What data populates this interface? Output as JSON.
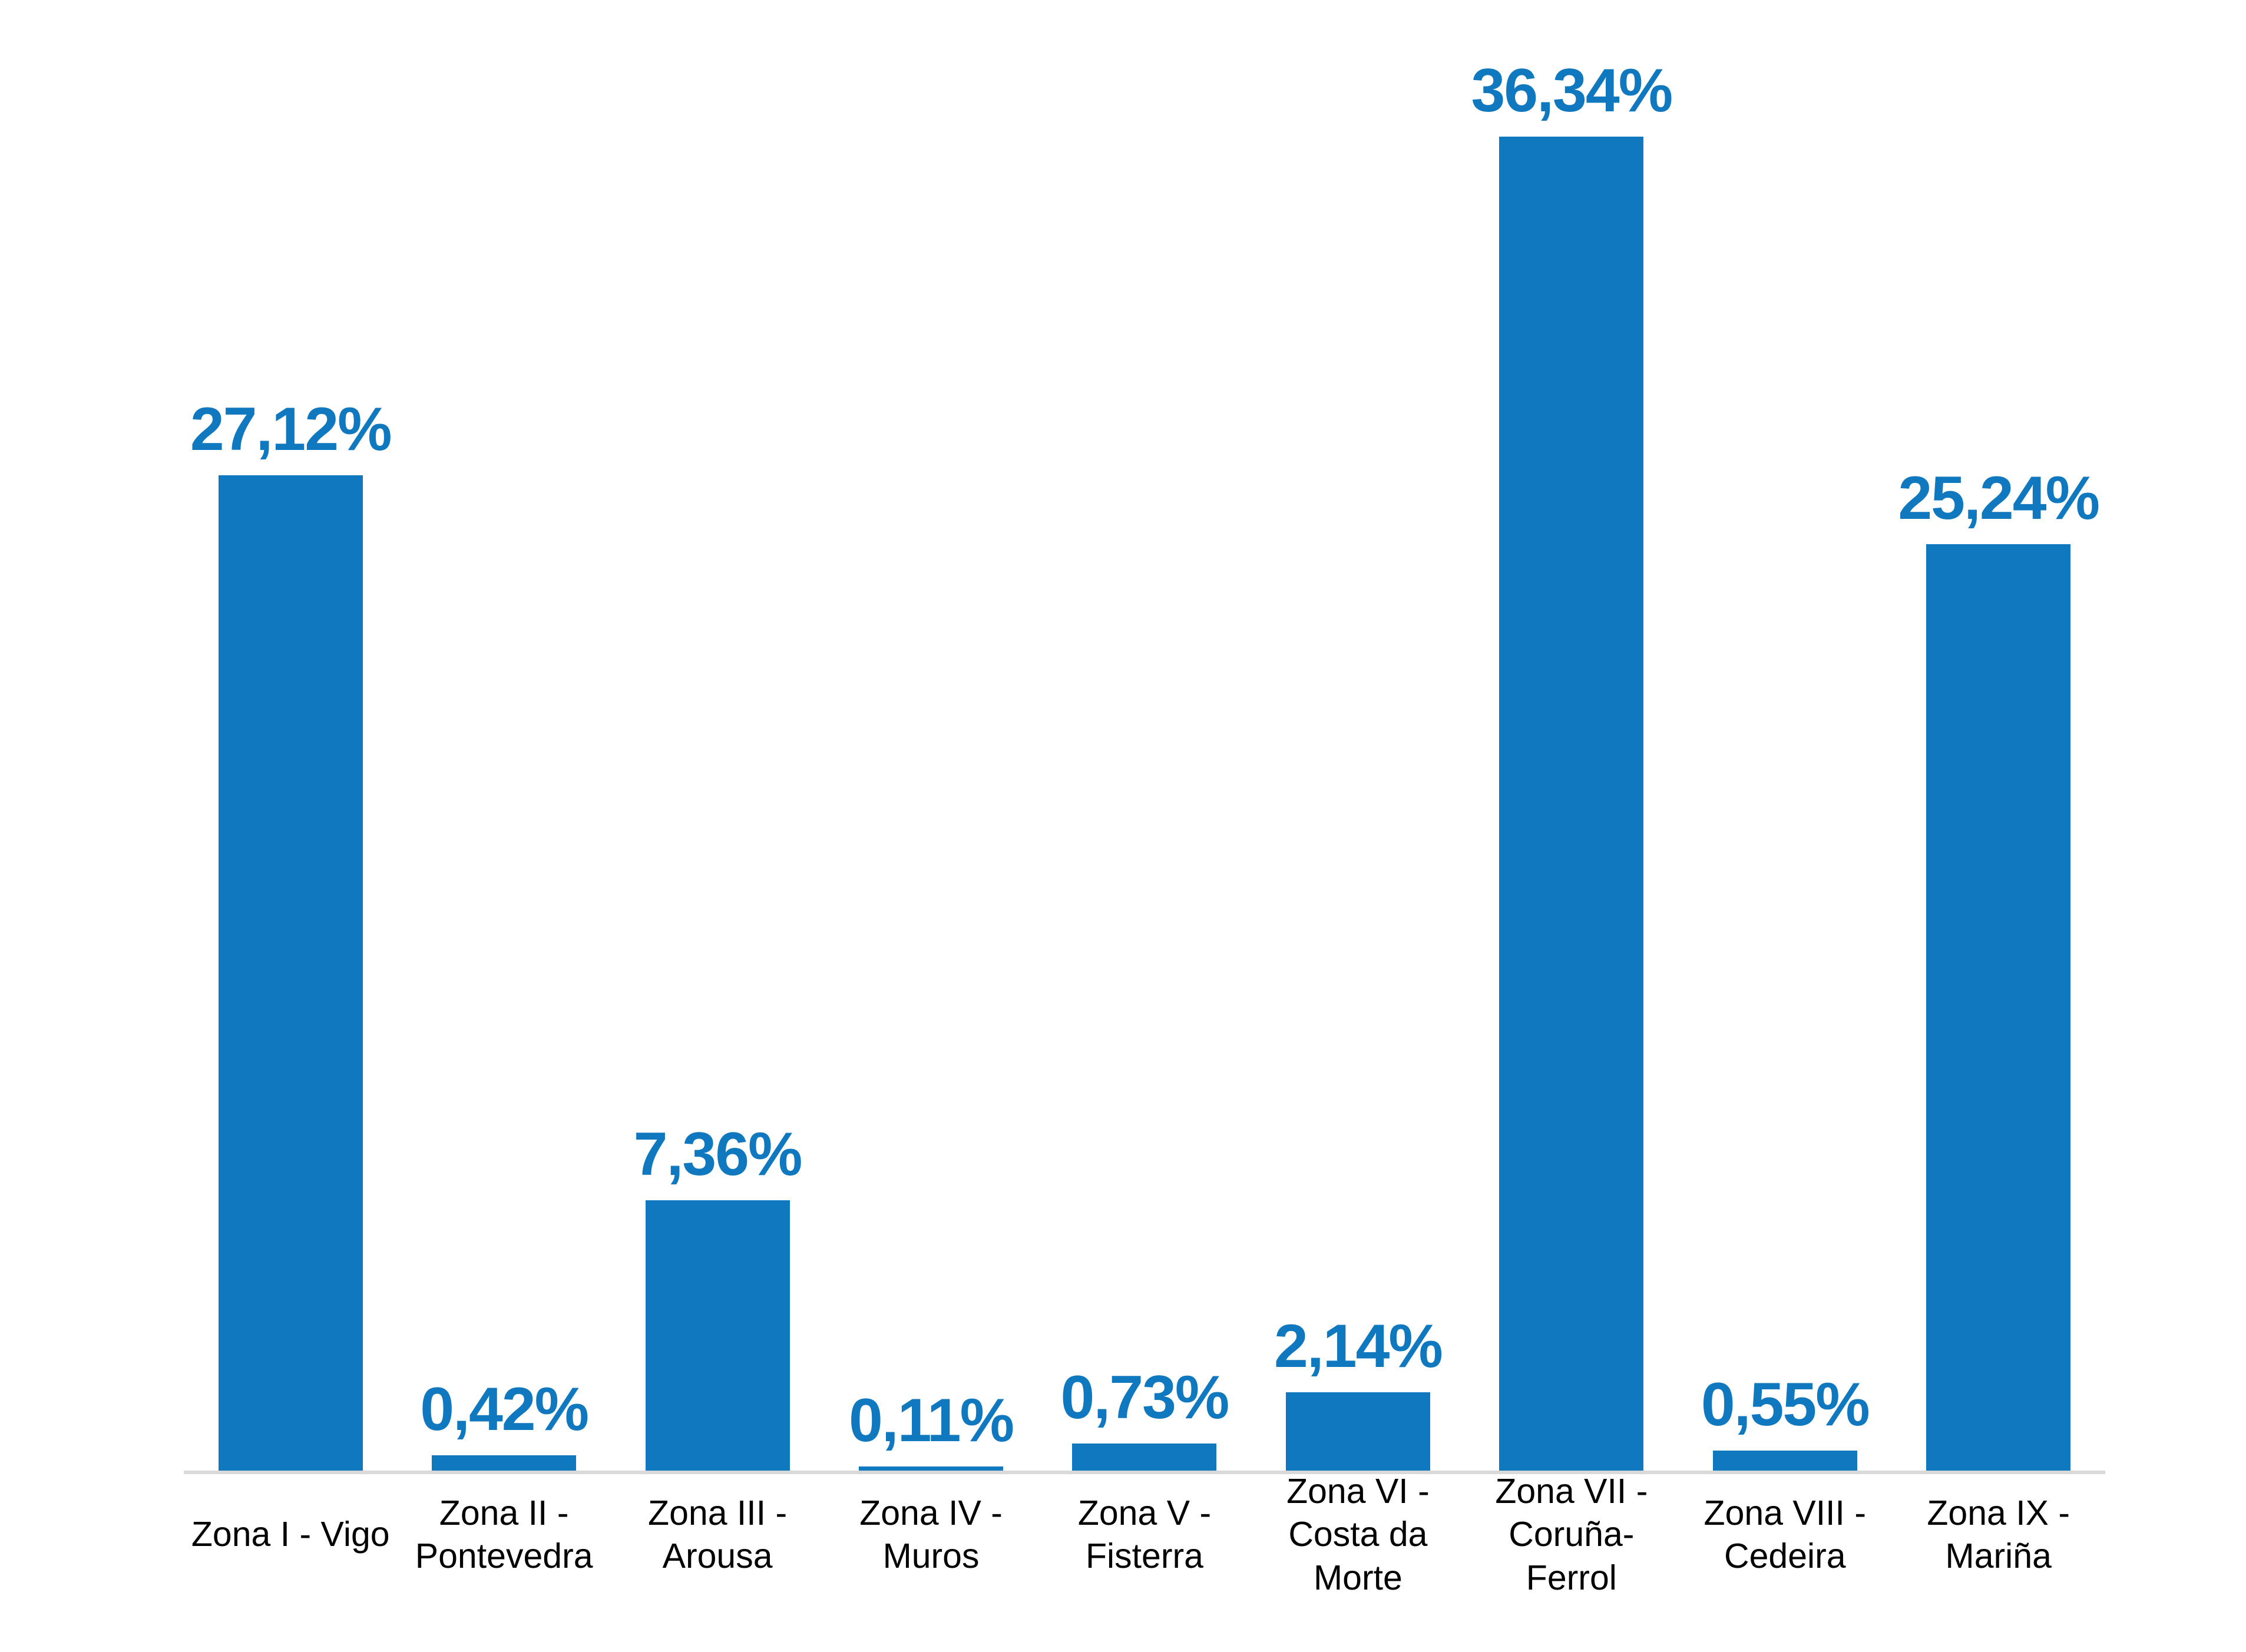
{
  "chart_data": {
    "type": "bar",
    "title": "",
    "xlabel": "",
    "ylabel": "",
    "categories": [
      "Zona I - Vigo",
      "Zona II -\nPontevedra",
      "Zona III -\nArousa",
      "Zona IV -\nMuros",
      "Zona V -\nFisterra",
      "Zona VI -\nCosta da\nMorte",
      "Zona VII -\nCoruña-\nFerrol",
      "Zona VIII -\nCedeira",
      "Zona IX -\nMariña"
    ],
    "values": [
      27.12,
      0.42,
      7.36,
      0.11,
      0.73,
      2.14,
      36.34,
      0.55,
      25.24
    ],
    "value_labels": [
      "27,12%",
      "0,42%",
      "7,36%",
      "0,11%",
      "0,73%",
      "2,14%",
      "36,34%",
      "0,55%",
      "25,24%"
    ],
    "ylim": [
      0,
      40
    ],
    "grid": false,
    "legend": false,
    "data_labels_position": "above-bar",
    "decimal_separator": ",",
    "bar_color": "#1078BE",
    "data_label_color": "#1078BE",
    "category_label_color": "#000000",
    "axis_line_color": "#D9D9D9",
    "background_color": "#FFFFFF"
  }
}
